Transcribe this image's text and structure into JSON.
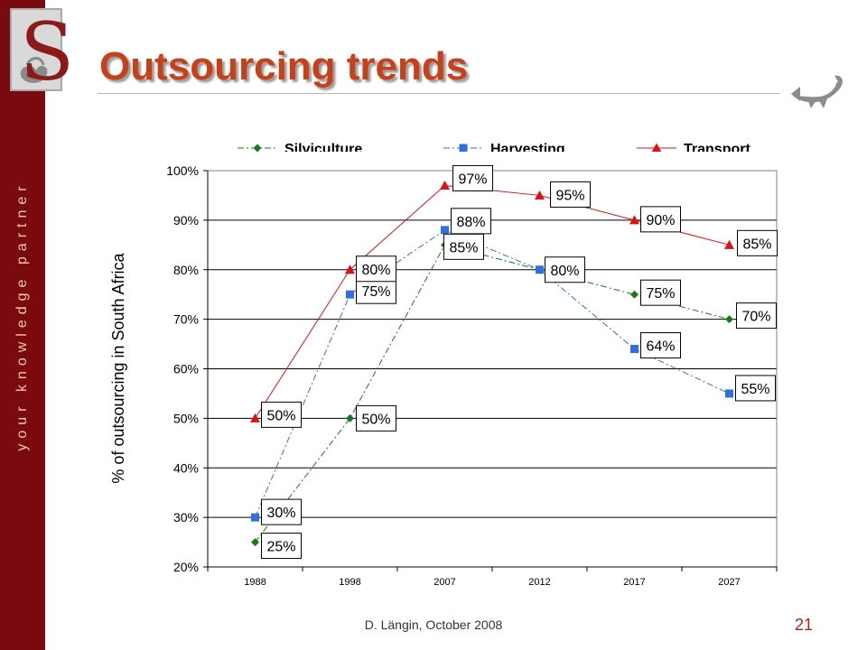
{
  "sidebar": {
    "tagline": "your knowledge partner"
  },
  "logo": {
    "letter": "S"
  },
  "slide": {
    "title": "Outsourcing trends"
  },
  "footer": {
    "text": "D. Längin, October 2008",
    "page_number": "21"
  },
  "colors": {
    "sidebar": "#7a0a10",
    "title": "#c8401a",
    "silviculture": "#1a7a1a",
    "harvesting": "#2f6fe0",
    "transport": "#e01010"
  },
  "chart_data": {
    "type": "line",
    "categories": [
      "1988",
      "1998",
      "2007",
      "2012",
      "2017",
      "2027"
    ],
    "ylabel": "% of outsourcing in South Africa",
    "xlabel": "",
    "ylim": [
      20,
      100
    ],
    "y_ticks": [
      "20%",
      "30%",
      "40%",
      "50%",
      "60%",
      "70%",
      "80%",
      "90%",
      "100%"
    ],
    "grid": "horizontal",
    "legend": "top",
    "series": [
      {
        "name": "Silviculture",
        "color": "#1a7a1a",
        "marker": "diamond",
        "dash": "dash-dot",
        "values": [
          25,
          50,
          85,
          80,
          75,
          70
        ],
        "labels": [
          "25%",
          "50%",
          "85%",
          "",
          "75%",
          "70%"
        ]
      },
      {
        "name": "Harvesting",
        "color": "#2f6fe0",
        "marker": "square",
        "dash": "dash-dot",
        "values": [
          30,
          75,
          88,
          80,
          64,
          55
        ],
        "labels": [
          "30%",
          "75%",
          "88%",
          "80%",
          "64%",
          "55%"
        ]
      },
      {
        "name": "Transport",
        "color": "#e01010",
        "marker": "triangle",
        "dash": "solid",
        "values": [
          50,
          80,
          97,
          95,
          90,
          85
        ],
        "labels": [
          "50%",
          "80%",
          "97%",
          "95%",
          "90%",
          "85%"
        ]
      }
    ]
  }
}
